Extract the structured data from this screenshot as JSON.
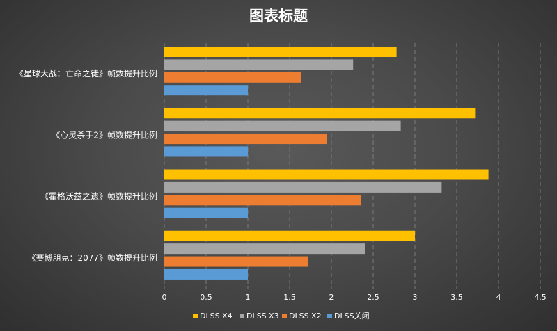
{
  "chart_data": {
    "type": "bar",
    "orientation": "horizontal",
    "title": "图表标题",
    "categories": [
      "《星球大战：亡命之徒》帧数提升比例",
      "《心灵杀手2》帧数提升比例",
      "《霍格沃兹之遗》帧数提升比例",
      "《赛博朋克：2077》帧数提升比例"
    ],
    "series": [
      {
        "name": "DLSS X4",
        "color": "#ffc000",
        "values": [
          2.78,
          3.72,
          3.88,
          3.0
        ]
      },
      {
        "name": "DLSS X3",
        "color": "#a5a5a5",
        "values": [
          2.26,
          2.83,
          3.32,
          2.4
        ]
      },
      {
        "name": "DLSS X2",
        "color": "#ed7d31",
        "values": [
          1.64,
          1.95,
          2.35,
          1.72
        ]
      },
      {
        "name": "DLSS关闭",
        "color": "#5b9bd5",
        "values": [
          1.0,
          1.0,
          1.0,
          1.0
        ]
      }
    ],
    "xlim": [
      0,
      4.5
    ],
    "x_ticks": [
      "0",
      "0.5",
      "1",
      "1.5",
      "2",
      "2.5",
      "3",
      "3.5",
      "4",
      "4.5"
    ],
    "grid": true,
    "legend_position": "bottom"
  }
}
